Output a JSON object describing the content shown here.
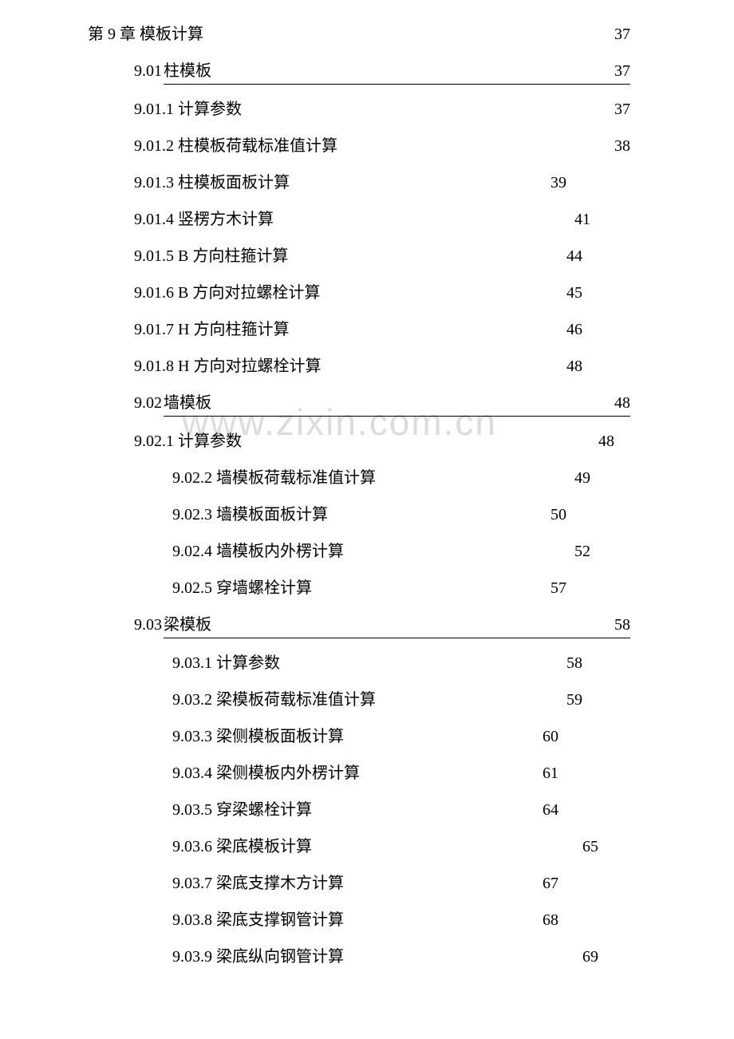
{
  "watermark": "www.zixin.com.cn",
  "entries": [
    {
      "type": "plain",
      "indent": 0,
      "num": "第 9 章",
      "title": "模板计算",
      "page": "37"
    },
    {
      "type": "section",
      "indent": 1,
      "num": "9.01",
      "title": "柱模板",
      "page": "37"
    },
    {
      "type": "plain",
      "indent": 2,
      "num": "9.01.1",
      "title": "计算参数",
      "page": "37"
    },
    {
      "type": "plain",
      "indent": 2,
      "num": "9.01.2",
      "title": "柱模板荷载标准值计算",
      "page": "38"
    },
    {
      "type": "plain",
      "indent": 2,
      "num": "9.01.3",
      "title": "柱模板面板计算",
      "page": "39"
    },
    {
      "type": "plain",
      "indent": 2,
      "num": "9.01.4",
      "title": "竖楞方木计算",
      "page": "41"
    },
    {
      "type": "plain",
      "indent": 2,
      "num": "9.01.5",
      "title": "B 方向柱箍计算",
      "page": "44"
    },
    {
      "type": "plain",
      "indent": 2,
      "num": "9.01.6",
      "title": "B 方向对拉螺栓计算",
      "page": "45"
    },
    {
      "type": "plain",
      "indent": 2,
      "num": "9.01.7",
      "title": "H 方向柱箍计算",
      "page": "46"
    },
    {
      "type": "plain",
      "indent": 2,
      "num": "9.01.8",
      "title": "H 方向对拉螺栓计算",
      "page": "48"
    },
    {
      "type": "section",
      "indent": 1,
      "num": "9.02",
      "title": "墙模板",
      "page": "48"
    },
    {
      "type": "plain",
      "indent": 2,
      "num": "9.02.1",
      "title": "计算参数",
      "page": "48"
    },
    {
      "type": "plain",
      "indent": 3,
      "num": "9.02.2",
      "title": "墙模板荷载标准值计算",
      "page": "49"
    },
    {
      "type": "plain",
      "indent": 3,
      "num": "9.02.3",
      "title": "墙模板面板计算",
      "page": "50"
    },
    {
      "type": "plain",
      "indent": 3,
      "num": "9.02.4",
      "title": "墙模板内外楞计算",
      "page": "52"
    },
    {
      "type": "plain",
      "indent": 3,
      "num": "9.02.5",
      "title": "穿墙螺栓计算",
      "page": "57"
    },
    {
      "type": "section",
      "indent": 1,
      "num": "9.03",
      "title": "梁模板",
      "page": "58"
    },
    {
      "type": "plain",
      "indent": 3,
      "num": "9.03.1",
      "title": "计算参数",
      "page": "58"
    },
    {
      "type": "plain",
      "indent": 3,
      "num": "9.03.2",
      "title": "梁模板荷载标准值计算",
      "page": "59"
    },
    {
      "type": "plain",
      "indent": 3,
      "num": "9.03.3",
      "title": "梁侧模板面板计算",
      "page": "60"
    },
    {
      "type": "plain",
      "indent": 3,
      "num": "9.03.4",
      "title": "梁侧模板内外楞计算",
      "page": "61"
    },
    {
      "type": "plain",
      "indent": 3,
      "num": "9.03.5",
      "title": "穿梁螺栓计算",
      "page": "64"
    },
    {
      "type": "plain",
      "indent": 3,
      "num": "9.03.6",
      "title": "梁底模板计算",
      "page": "65"
    },
    {
      "type": "plain",
      "indent": 3,
      "num": "9.03.7",
      "title": "梁底支撑木方计算",
      "page": "67"
    },
    {
      "type": "plain",
      "indent": 3,
      "num": "9.03.8",
      "title": "梁底支撑钢管计算",
      "page": "68"
    },
    {
      "type": "plain",
      "indent": 3,
      "num": "9.03.9",
      "title": "梁底纵向钢管计算",
      "page": "69"
    }
  ],
  "page_offsets": {
    "0": 0,
    "1": 0,
    "2": 0,
    "3": 0,
    "4": -80,
    "5": -50,
    "6": -60,
    "7": -60,
    "8": -60,
    "9": -60,
    "10": 0,
    "11": -20,
    "12": -50,
    "13": -80,
    "14": -50,
    "15": -80,
    "16": 0,
    "17": -60,
    "18": -60,
    "19": -90,
    "20": -90,
    "21": -90,
    "22": -40,
    "23": -90,
    "24": -90,
    "25": -40
  }
}
